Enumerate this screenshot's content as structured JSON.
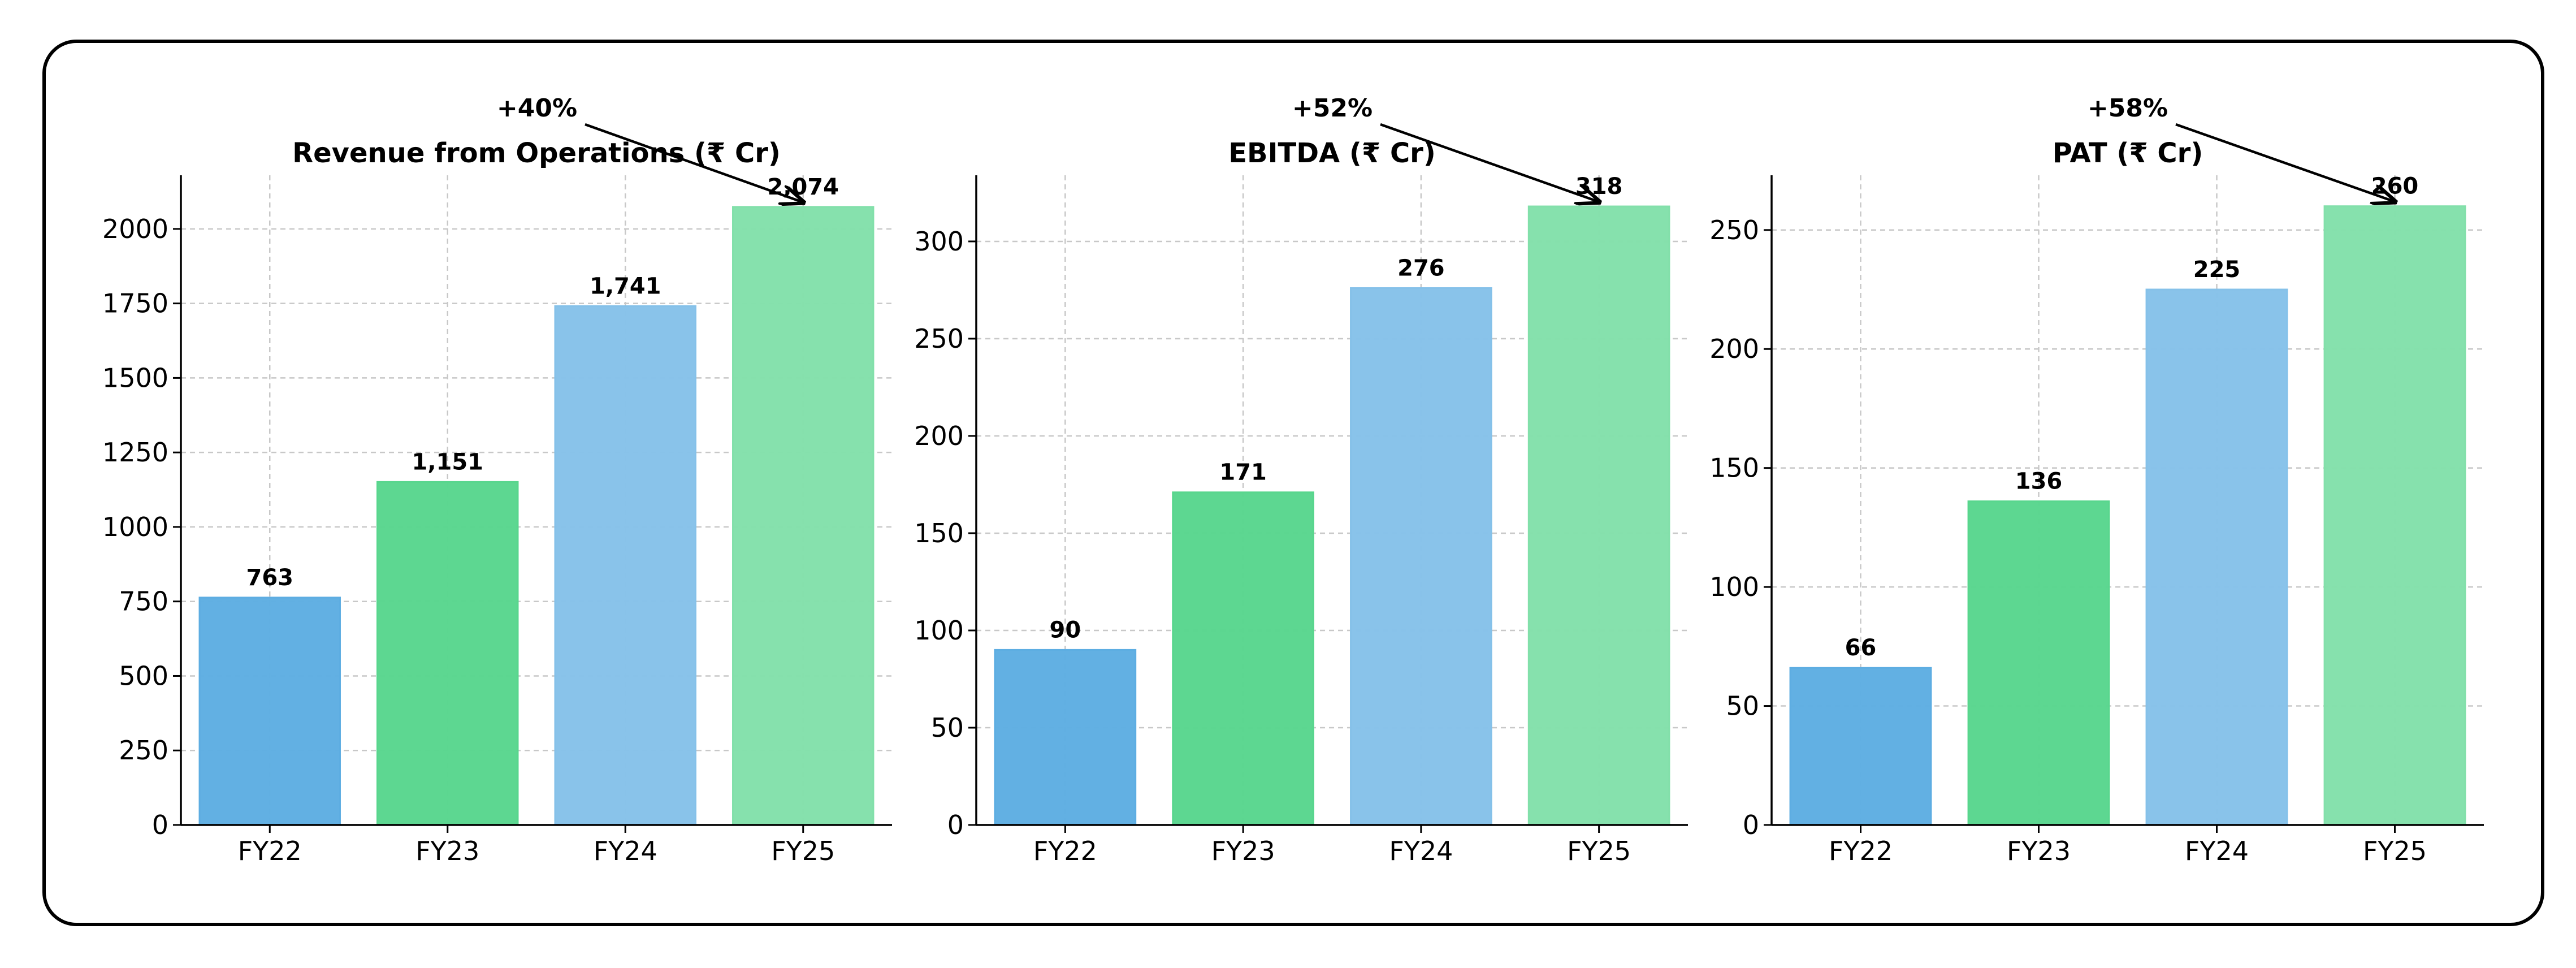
{
  "colors": [
    "#5DADE2",
    "#58D68D",
    "#85C1E9",
    "#82E0AA"
  ],
  "chart_data": [
    {
      "type": "bar",
      "title": "Revenue from Operations (₹ Cr)",
      "categories": [
        "FY22",
        "FY23",
        "FY24",
        "FY25"
      ],
      "values": [
        763,
        1151,
        1741,
        2074
      ],
      "value_labels": [
        "763",
        "1,151",
        "1,741",
        "2,074"
      ],
      "ylim": [
        0,
        2180
      ],
      "yticks": [
        0,
        250,
        500,
        750,
        1000,
        1250,
        1500,
        1750,
        2000
      ],
      "growth": "+40%",
      "grid": true
    },
    {
      "type": "bar",
      "title": "EBITDA (₹ Cr)",
      "categories": [
        "FY22",
        "FY23",
        "FY24",
        "FY25"
      ],
      "values": [
        90,
        171,
        276,
        318
      ],
      "value_labels": [
        "90",
        "171",
        "276",
        "318"
      ],
      "ylim": [
        0,
        334
      ],
      "yticks": [
        0,
        50,
        100,
        150,
        200,
        250,
        300
      ],
      "growth": "+52%",
      "grid": true
    },
    {
      "type": "bar",
      "title": "PAT (₹ Cr)",
      "categories": [
        "FY22",
        "FY23",
        "FY24",
        "FY25"
      ],
      "values": [
        66,
        136,
        225,
        260
      ],
      "value_labels": [
        "66",
        "136",
        "225",
        "260"
      ],
      "ylim": [
        0,
        273
      ],
      "yticks": [
        0,
        50,
        100,
        150,
        200,
        250
      ],
      "growth": "+58%",
      "grid": true
    }
  ]
}
